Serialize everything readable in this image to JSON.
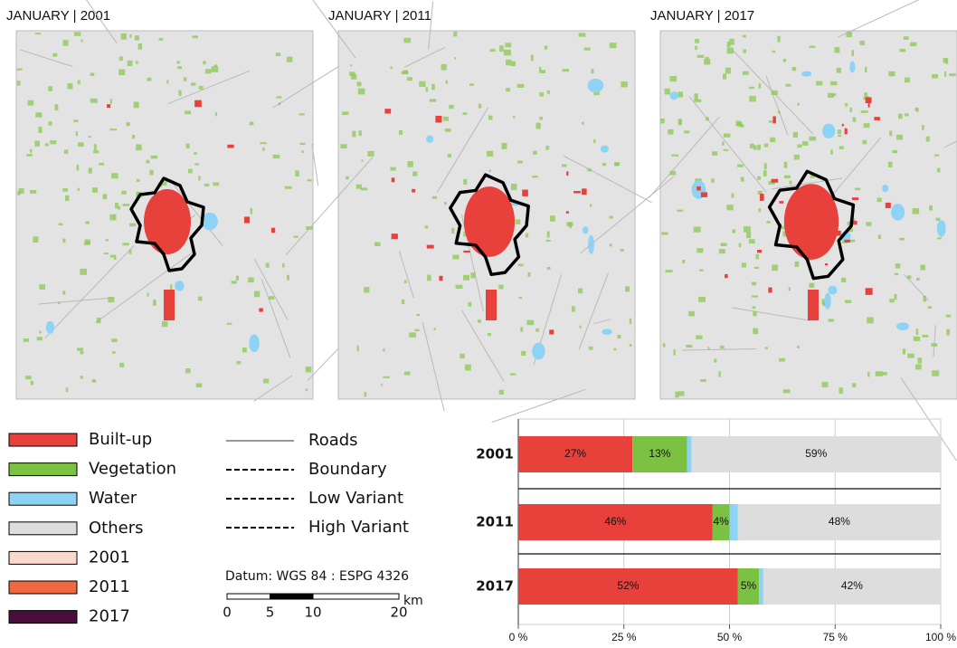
{
  "maps": [
    {
      "title": "JANUARY | 2001"
    },
    {
      "title": "JANUARY | 2011"
    },
    {
      "title": "JANUARY | 2017"
    }
  ],
  "legend_extra": [
    {
      "label": "2001",
      "color": "#f9d9cc"
    },
    {
      "label": "2011",
      "color": "#f06840"
    },
    {
      "label": "2017",
      "color": "#4a0e3a"
    }
  ],
  "line_legend": [
    {
      "label": "Roads",
      "style": "solid"
    },
    {
      "label": "Boundary",
      "style": "dashed"
    },
    {
      "label": "Low Variant",
      "style": "dashed"
    },
    {
      "label": "High Variant",
      "style": "dashed"
    }
  ],
  "datum": "Datum: WGS 84 : ESPG 4326",
  "scale_bar": {
    "ticks": [
      0,
      5,
      10,
      20
    ],
    "unit": "km"
  },
  "chart_data": {
    "type": "bar",
    "orientation": "horizontal",
    "stacked": true,
    "categories": [
      "2001",
      "2011",
      "2017"
    ],
    "series": [
      {
        "name": "Built-up",
        "color": "#e8413c",
        "values": [
          27,
          46,
          52
        ],
        "value_labels": [
          "27%",
          "46%",
          "52%"
        ]
      },
      {
        "name": "Vegetation",
        "color": "#7cc242",
        "values": [
          13,
          4,
          5
        ],
        "value_labels": [
          "13%",
          "4%",
          "5%"
        ]
      },
      {
        "name": "Water",
        "color": "#8dd3f5",
        "values": [
          1,
          2,
          1
        ]
      },
      {
        "name": "Others",
        "color": "#dddddd",
        "values": [
          59,
          48,
          42
        ],
        "value_labels": [
          "59%",
          "48%",
          "42%"
        ]
      }
    ],
    "xlim": [
      0,
      100
    ],
    "xticks": [
      {
        "value": 0,
        "label": "0 %"
      },
      {
        "value": 25,
        "label": "25 %"
      },
      {
        "value": 50,
        "label": "50 %"
      },
      {
        "value": 75,
        "label": "75 %"
      },
      {
        "value": 100,
        "label": "100 %"
      }
    ],
    "grid": true
  }
}
